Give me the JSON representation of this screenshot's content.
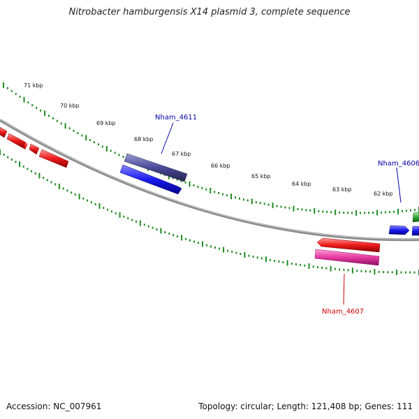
{
  "title": "Nitrobacter hamburgensis X14 plasmid 3, complete sequence",
  "footer": {
    "accession": "Accession: NC_007961",
    "stats": "Topology: circular; Length: 121,408 bp; Genes: 111"
  },
  "colors": {
    "backbone": "#7a7a7a",
    "ticks": "#1f8a1f",
    "forward_strand": "#1a1aee",
    "reverse_strand": "#ee1a1a",
    "slate_gene": "#4a4a9a",
    "pink_gene": "#e63aa0",
    "green_gene": "#33aa33",
    "label_blue": "#0000aa",
    "label_red": "#cc0000"
  },
  "scale": {
    "unit": "kbp",
    "labels": [
      "71 kbp",
      "70 kbp",
      "69 kbp",
      "68 kbp",
      "67 kbp",
      "66 kbp",
      "65 kbp",
      "64 kbp",
      "63 kbp",
      "62 kbp"
    ]
  },
  "gene_labels": [
    {
      "text": "Nham_4611",
      "color": "label_blue"
    },
    {
      "text": "Nham_4606",
      "color": "label_blue"
    },
    {
      "text": "Nham_4607",
      "color": "label_red"
    }
  ]
}
